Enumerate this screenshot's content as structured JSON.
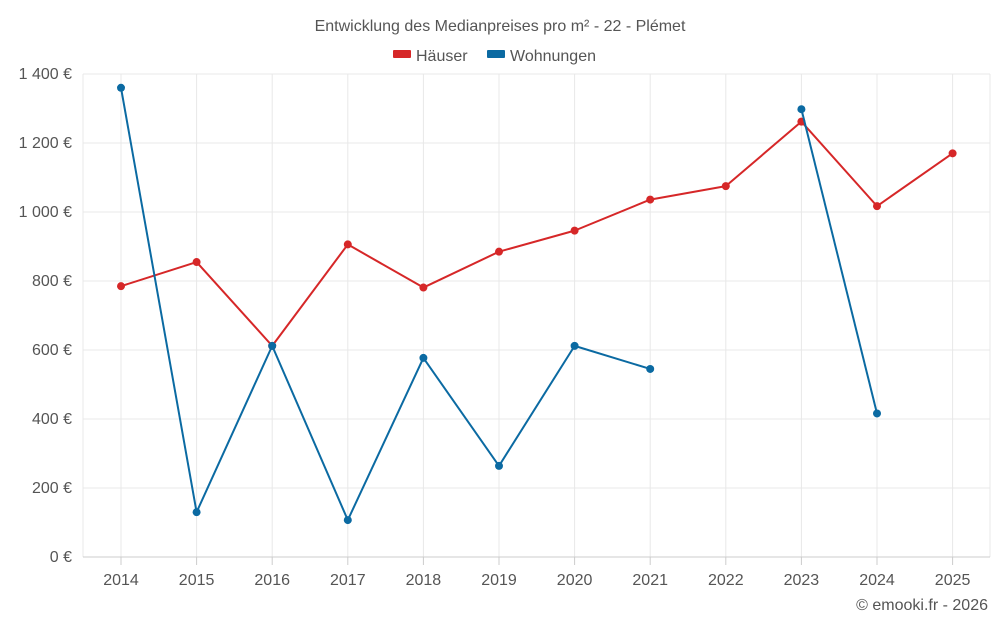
{
  "chart_data": {
    "type": "line",
    "title": "Entwicklung des Medianpreises pro m² - 22 - Plémet",
    "categories": [
      "2014",
      "2015",
      "2016",
      "2017",
      "2018",
      "2019",
      "2020",
      "2021",
      "2022",
      "2023",
      "2024",
      "2025"
    ],
    "series": [
      {
        "name": "Häuser",
        "color": "#d62728",
        "values": [
          785,
          855,
          612,
          906,
          781,
          885,
          946,
          1036,
          1075,
          1262,
          1017,
          1170
        ]
      },
      {
        "name": "Wohnungen",
        "color": "#0b6aa2",
        "values": [
          1360,
          130,
          612,
          107,
          577,
          264,
          612,
          545,
          null,
          1298,
          416,
          null
        ]
      }
    ],
    "ylim": [
      0,
      1400
    ],
    "yticks": [
      0,
      200,
      400,
      600,
      800,
      1000,
      1200,
      1400
    ],
    "ytick_labels": [
      "0 €",
      "200 €",
      "400 €",
      "600 €",
      "800 €",
      "1 000 €",
      "1 200 €",
      "1 400 €"
    ],
    "xlabel": "",
    "ylabel": "",
    "legend_position": "top-center",
    "grid": true
  },
  "credit": "© emooki.fr - 2026"
}
